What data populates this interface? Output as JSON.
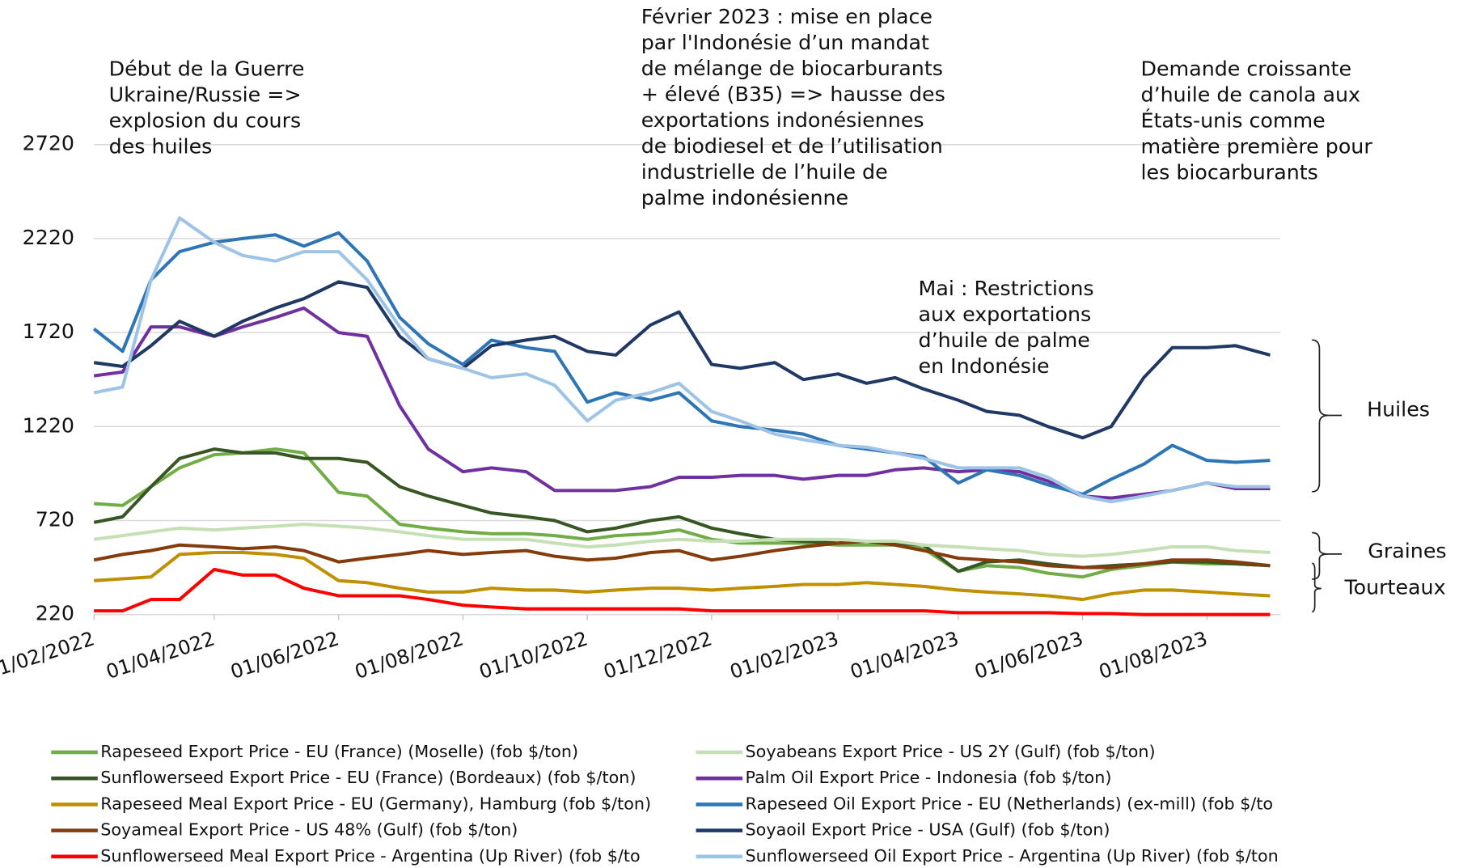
{
  "chart_data": {
    "type": "line",
    "annotations": [
      {
        "lines": [
          "Début de la Guerre",
          "Ukraine/Russie =>",
          "explosion du cours",
          "des huiles"
        ]
      },
      {
        "lines": [
          "Février 2023 :  mise en place",
          "par l'Indonésie d’un mandat",
          "de mélange de biocarburants",
          "+ élevé (B35) => hausse des",
          "exportations indonésiennes",
          "de biodiesel et de l’utilisation",
          "industrielle de l’huile de",
          "palme indonésienne"
        ]
      },
      {
        "lines": [
          "Mai : Restrictions",
          "aux exportations",
          "d’huile de palme",
          "en Indonésie"
        ]
      },
      {
        "lines": [
          "Demande croissante",
          "d’huile de canola aux",
          "États-unis comme",
          "matière première pour",
          "les biocarburants"
        ]
      }
    ],
    "groups": [
      "Huiles",
      "Graines",
      "Tourteaux"
    ],
    "x": [
      "2022-02-01",
      "2022-02-15",
      "2022-03-01",
      "2022-03-15",
      "2022-04-01",
      "2022-04-15",
      "2022-05-01",
      "2022-05-15",
      "2022-06-01",
      "2022-06-15",
      "2022-07-01",
      "2022-07-15",
      "2022-08-01",
      "2022-08-15",
      "2022-09-01",
      "2022-09-15",
      "2022-10-01",
      "2022-10-15",
      "2022-11-01",
      "2022-11-15",
      "2022-12-01",
      "2022-12-15",
      "2023-01-01",
      "2023-01-15",
      "2023-02-01",
      "2023-02-15",
      "2023-03-01",
      "2023-03-15",
      "2023-04-01",
      "2023-04-15",
      "2023-05-01",
      "2023-05-15",
      "2023-06-01",
      "2023-06-15",
      "2023-07-01",
      "2023-07-15",
      "2023-08-01",
      "2023-08-15",
      "2023-09-01"
    ],
    "xlim": [
      "2022-02-01",
      "2023-09-06"
    ],
    "xticks": [
      {
        "value": "2022-02-01",
        "label": "01/02/2022"
      },
      {
        "value": "2022-04-01",
        "label": "01/04/2022"
      },
      {
        "value": "2022-06-01",
        "label": "01/06/2022"
      },
      {
        "value": "2022-08-01",
        "label": "01/08/2022"
      },
      {
        "value": "2022-10-01",
        "label": "01/10/2022"
      },
      {
        "value": "2022-12-01",
        "label": "01/12/2022"
      },
      {
        "value": "2023-02-01",
        "label": "01/02/2023"
      },
      {
        "value": "2023-04-01",
        "label": "01/04/2023"
      },
      {
        "value": "2023-06-01",
        "label": "01/06/2023"
      },
      {
        "value": "2023-08-01",
        "label": "01/08/2023"
      }
    ],
    "ylim": [
      220,
      2720
    ],
    "yticks": [
      220,
      720,
      1220,
      1720,
      2220,
      2720
    ],
    "grid": true,
    "series": [
      {
        "name": "Rapeseed Export Price - EU (France) (Moselle) (fob $/ton)",
        "color": "#70ad47",
        "values": [
          810,
          800,
          900,
          1000,
          1070,
          1080,
          1100,
          1080,
          870,
          850,
          700,
          680,
          660,
          650,
          650,
          640,
          620,
          640,
          650,
          670,
          620,
          600,
          600,
          600,
          590,
          590,
          590,
          570,
          450,
          480,
          470,
          440,
          420,
          460,
          480,
          500,
          490,
          490,
          480
        ]
      },
      {
        "name": "Sunflowerseed Export Price - EU (France) (Bordeaux) (fob $/ton)",
        "color": "#375623",
        "values": [
          710,
          740,
          900,
          1050,
          1100,
          1080,
          1080,
          1050,
          1050,
          1030,
          900,
          850,
          800,
          760,
          740,
          720,
          660,
          680,
          720,
          740,
          680,
          650,
          620,
          610,
          600,
          610,
          600,
          590,
          450,
          500,
          510,
          490,
          470,
          480,
          490,
          500,
          500,
          490,
          480
        ]
      },
      {
        "name": "Rapeseed Meal Export Price - EU (Germany), Hamburg (fob $/ton)",
        "color": "#bf9000",
        "values": [
          400,
          410,
          420,
          540,
          550,
          550,
          540,
          520,
          400,
          390,
          360,
          340,
          340,
          360,
          350,
          350,
          340,
          350,
          360,
          360,
          350,
          360,
          370,
          380,
          380,
          390,
          380,
          370,
          350,
          340,
          330,
          320,
          300,
          330,
          350,
          350,
          340,
          330,
          320
        ]
      },
      {
        "name": "Soyameal Export Price - US 48% (Gulf) (fob $/ton)",
        "color": "#843c0c",
        "values": [
          510,
          540,
          560,
          590,
          580,
          570,
          580,
          560,
          500,
          520,
          540,
          560,
          540,
          550,
          560,
          530,
          510,
          520,
          550,
          560,
          510,
          530,
          560,
          580,
          600,
          610,
          590,
          560,
          520,
          510,
          500,
          480,
          470,
          470,
          490,
          510,
          510,
          500,
          480
        ]
      },
      {
        "name": "Sunflowerseed Meal Export Price - Argentina (Up River) (fob $/to",
        "color": "#ff0000",
        "values": [
          240,
          240,
          300,
          300,
          460,
          430,
          430,
          360,
          320,
          320,
          320,
          300,
          270,
          260,
          250,
          250,
          250,
          250,
          250,
          250,
          240,
          240,
          240,
          240,
          240,
          240,
          240,
          240,
          230,
          230,
          230,
          230,
          225,
          225,
          220,
          220,
          220,
          220,
          220
        ]
      },
      {
        "name": "Soyabeans Export Price - US 2Y (Gulf) (fob $/ton)",
        "color": "#c5e0b4",
        "values": [
          620,
          640,
          660,
          680,
          670,
          680,
          690,
          700,
          690,
          680,
          660,
          640,
          620,
          620,
          620,
          600,
          580,
          590,
          610,
          620,
          610,
          610,
          620,
          620,
          620,
          610,
          610,
          590,
          580,
          570,
          560,
          540,
          530,
          540,
          560,
          580,
          580,
          560,
          550
        ]
      },
      {
        "name": "Palm Oil Export Price - Indonesia (fob $/ton)",
        "color": "#7030a0",
        "values": [
          1490,
          1510,
          1750,
          1750,
          1700,
          1750,
          1800,
          1850,
          1720,
          1700,
          1330,
          1100,
          980,
          1000,
          980,
          880,
          880,
          880,
          900,
          950,
          950,
          960,
          960,
          940,
          960,
          960,
          990,
          1000,
          980,
          990,
          980,
          930,
          850,
          840,
          860,
          880,
          920,
          890,
          890
        ]
      },
      {
        "name": "Rapeseed Oil Export Price - EU (Netherlands) (ex-mill) (fob $/to",
        "color": "#2e75b6",
        "values": [
          1740,
          1620,
          2000,
          2150,
          2200,
          2220,
          2240,
          2180,
          2250,
          2100,
          1800,
          1660,
          1550,
          1680,
          1640,
          1620,
          1350,
          1400,
          1360,
          1400,
          1250,
          1220,
          1200,
          1180,
          1120,
          1100,
          1080,
          1060,
          920,
          990,
          960,
          910,
          860,
          940,
          1020,
          1120,
          1040,
          1030,
          1040
        ]
      },
      {
        "name": "Soyaoil Export Price - USA (Gulf) (fob $/ton)",
        "color": "#1f3864",
        "values": [
          1560,
          1540,
          1650,
          1780,
          1700,
          1780,
          1850,
          1900,
          1990,
          1960,
          1700,
          1580,
          1530,
          1650,
          1680,
          1700,
          1620,
          1600,
          1760,
          1830,
          1550,
          1530,
          1560,
          1470,
          1500,
          1450,
          1480,
          1420,
          1360,
          1300,
          1280,
          1220,
          1160,
          1220,
          1480,
          1640,
          1640,
          1650,
          1600
        ]
      },
      {
        "name": "Sunflowerseed Oil Export Price - Argentina (Up River) (fob $/ton",
        "color": "#9dc3e6",
        "values": [
          1400,
          1430,
          2000,
          2330,
          2200,
          2130,
          2100,
          2150,
          2150,
          2000,
          1750,
          1580,
          1530,
          1480,
          1500,
          1440,
          1250,
          1360,
          1400,
          1450,
          1300,
          1250,
          1180,
          1150,
          1120,
          1110,
          1080,
          1050,
          1000,
          1000,
          1000,
          950,
          850,
          820,
          850,
          880,
          920,
          900,
          900
        ]
      }
    ]
  }
}
